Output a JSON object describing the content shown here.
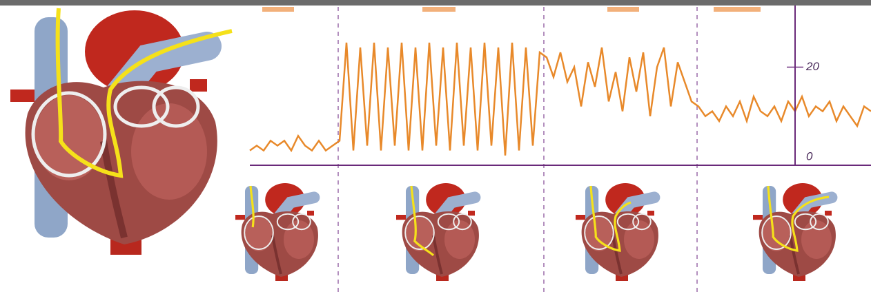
{
  "chart_data": {
    "type": "line",
    "x": [
      0,
      1,
      2,
      3,
      4,
      5,
      6,
      7,
      8,
      9,
      10,
      11,
      12,
      13,
      14,
      15,
      16,
      17,
      18,
      19,
      20,
      21,
      22,
      23,
      24,
      25,
      26,
      27,
      28,
      29,
      30,
      31,
      32,
      33,
      34,
      35,
      36,
      37,
      38,
      39,
      40,
      41,
      42,
      43,
      44,
      45,
      46,
      47,
      48,
      49,
      50,
      51,
      52,
      53,
      54,
      55,
      56,
      57,
      58,
      59,
      60,
      61,
      62,
      63,
      64,
      65,
      66,
      67,
      68,
      69,
      70,
      71,
      72,
      73,
      74,
      75,
      76,
      77,
      78,
      79,
      80,
      81,
      82,
      83,
      84,
      85,
      86,
      87,
      88,
      89,
      90
    ],
    "values": [
      3,
      4,
      3,
      5,
      4,
      5,
      3,
      6,
      4,
      3,
      5,
      3,
      4,
      5,
      25,
      3,
      24,
      4,
      25,
      3,
      24,
      4,
      25,
      3,
      24,
      3,
      25,
      4,
      24,
      3,
      25,
      4,
      24,
      3,
      25,
      4,
      24,
      2,
      25,
      3,
      24,
      4,
      23,
      22,
      18,
      23,
      17,
      20,
      12,
      21,
      16,
      24,
      13,
      19,
      11,
      22,
      15,
      23,
      10,
      20,
      24,
      12,
      21,
      17,
      13,
      12,
      10,
      11,
      9,
      12,
      10,
      13,
      9,
      14,
      11,
      10,
      12,
      9,
      13,
      11,
      14,
      10,
      12,
      11,
      13,
      9,
      12,
      10,
      8,
      12,
      11
    ],
    "color": "#e8892a",
    "xlim": [
      0,
      90
    ],
    "ylim": [
      0,
      32
    ],
    "yticks": [
      0,
      20
    ]
  }
}
